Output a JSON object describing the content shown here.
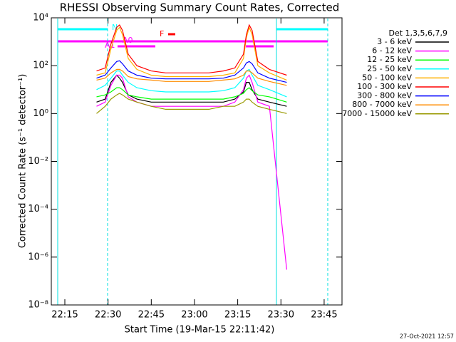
{
  "chart_data": {
    "type": "line",
    "title": "RHESSI Observing Summary Count Rates, Corrected",
    "x_label": "Start Time (19-Mar-15 22:11:42)",
    "y_label": "Corrected Count Rate (s⁻¹ detector⁻¹)",
    "legend_title": "Det 1,3,5,6,7,9",
    "footer": "27-Oct-2021 12:57",
    "annotations": [
      "A1",
      "A0",
      "F",
      "N"
    ],
    "log_y": true,
    "legend": "right",
    "xlim": [
      10.3,
      111.2
    ],
    "xticks": [
      {
        "value": 15,
        "label": "22:15"
      },
      {
        "value": 30,
        "label": "22:30"
      },
      {
        "value": 45,
        "label": "22:45"
      },
      {
        "value": 60,
        "label": "23:00"
      },
      {
        "value": 75,
        "label": "23:15"
      },
      {
        "value": 90,
        "label": "23:30"
      },
      {
        "value": 105,
        "label": "23:45"
      }
    ],
    "ylim": [
      1e-08,
      10000
    ],
    "yticks": [
      {
        "value": 1e-08,
        "label": "10⁻⁸"
      },
      {
        "value": 1e-06,
        "label": "10⁻⁶"
      },
      {
        "value": 0.0001,
        "label": "10⁻⁴"
      },
      {
        "value": 0.01,
        "label": "10⁻²"
      },
      {
        "value": 1,
        "label": "10⁰"
      },
      {
        "value": 100,
        "label": "10²"
      },
      {
        "value": 10000,
        "label": "10⁴"
      }
    ],
    "x": [
      26,
      29,
      31,
      33,
      34,
      35,
      37,
      40,
      45,
      50,
      55,
      60,
      65,
      70,
      74,
      77,
      78,
      79,
      80,
      82,
      86,
      92
    ],
    "series": [
      {
        "name": "3 - 6 keV",
        "color": "#000000",
        "values": [
          3,
          4,
          20,
          40,
          30,
          20,
          6,
          4,
          3,
          3,
          3,
          3,
          3,
          3,
          4,
          8,
          20,
          20,
          10,
          4,
          3,
          2
        ]
      },
      {
        "name": "6 - 12 keV",
        "color": "#ff00ff",
        "values": [
          2,
          3,
          15,
          40,
          40,
          30,
          5,
          3,
          2,
          2,
          2,
          2,
          2,
          2,
          3,
          10,
          30,
          40,
          20,
          3,
          2,
          3e-07
        ]
      },
      {
        "name": "12 - 25 keV",
        "color": "#00ff00",
        "values": [
          5,
          6,
          8,
          12,
          12,
          10,
          6,
          5,
          4,
          4,
          4,
          4,
          4,
          4,
          5,
          7,
          10,
          12,
          9,
          6,
          5,
          3
        ]
      },
      {
        "name": "25 - 50 keV",
        "color": "#00ffff",
        "values": [
          10,
          15,
          30,
          60,
          60,
          40,
          20,
          12,
          9,
          8,
          8,
          8,
          8,
          9,
          12,
          30,
          60,
          70,
          40,
          15,
          10,
          5
        ]
      },
      {
        "name": "50 - 100 keV",
        "color": "#ffb000",
        "values": [
          40,
          50,
          500,
          3000,
          4000,
          2000,
          200,
          70,
          40,
          35,
          35,
          35,
          35,
          40,
          50,
          200,
          1500,
          4000,
          2000,
          100,
          50,
          25
        ]
      },
      {
        "name": "100 - 300 keV",
        "color": "#ff0000",
        "values": [
          60,
          80,
          800,
          4000,
          5000,
          3000,
          300,
          100,
          60,
          50,
          50,
          50,
          50,
          60,
          80,
          300,
          2000,
          5000,
          3000,
          150,
          70,
          40
        ]
      },
      {
        "name": "300 - 800 keV",
        "color": "#0000ff",
        "values": [
          30,
          40,
          80,
          150,
          160,
          120,
          60,
          40,
          30,
          28,
          28,
          28,
          28,
          30,
          40,
          80,
          130,
          150,
          120,
          50,
          30,
          20
        ]
      },
      {
        "name": "800 - 7000 keV",
        "color": "#ff8c00",
        "values": [
          25,
          30,
          50,
          70,
          70,
          60,
          35,
          28,
          25,
          22,
          22,
          22,
          22,
          25,
          28,
          40,
          60,
          60,
          50,
          30,
          22,
          15
        ]
      },
      {
        "name": "7000 - 15000 keV",
        "color": "#999900",
        "values": [
          1,
          2,
          4,
          6,
          7,
          6,
          4,
          3,
          2,
          1.5,
          1.5,
          1.5,
          1.5,
          2,
          2,
          3,
          4,
          4,
          3,
          2,
          1.5,
          1
        ]
      }
    ]
  }
}
